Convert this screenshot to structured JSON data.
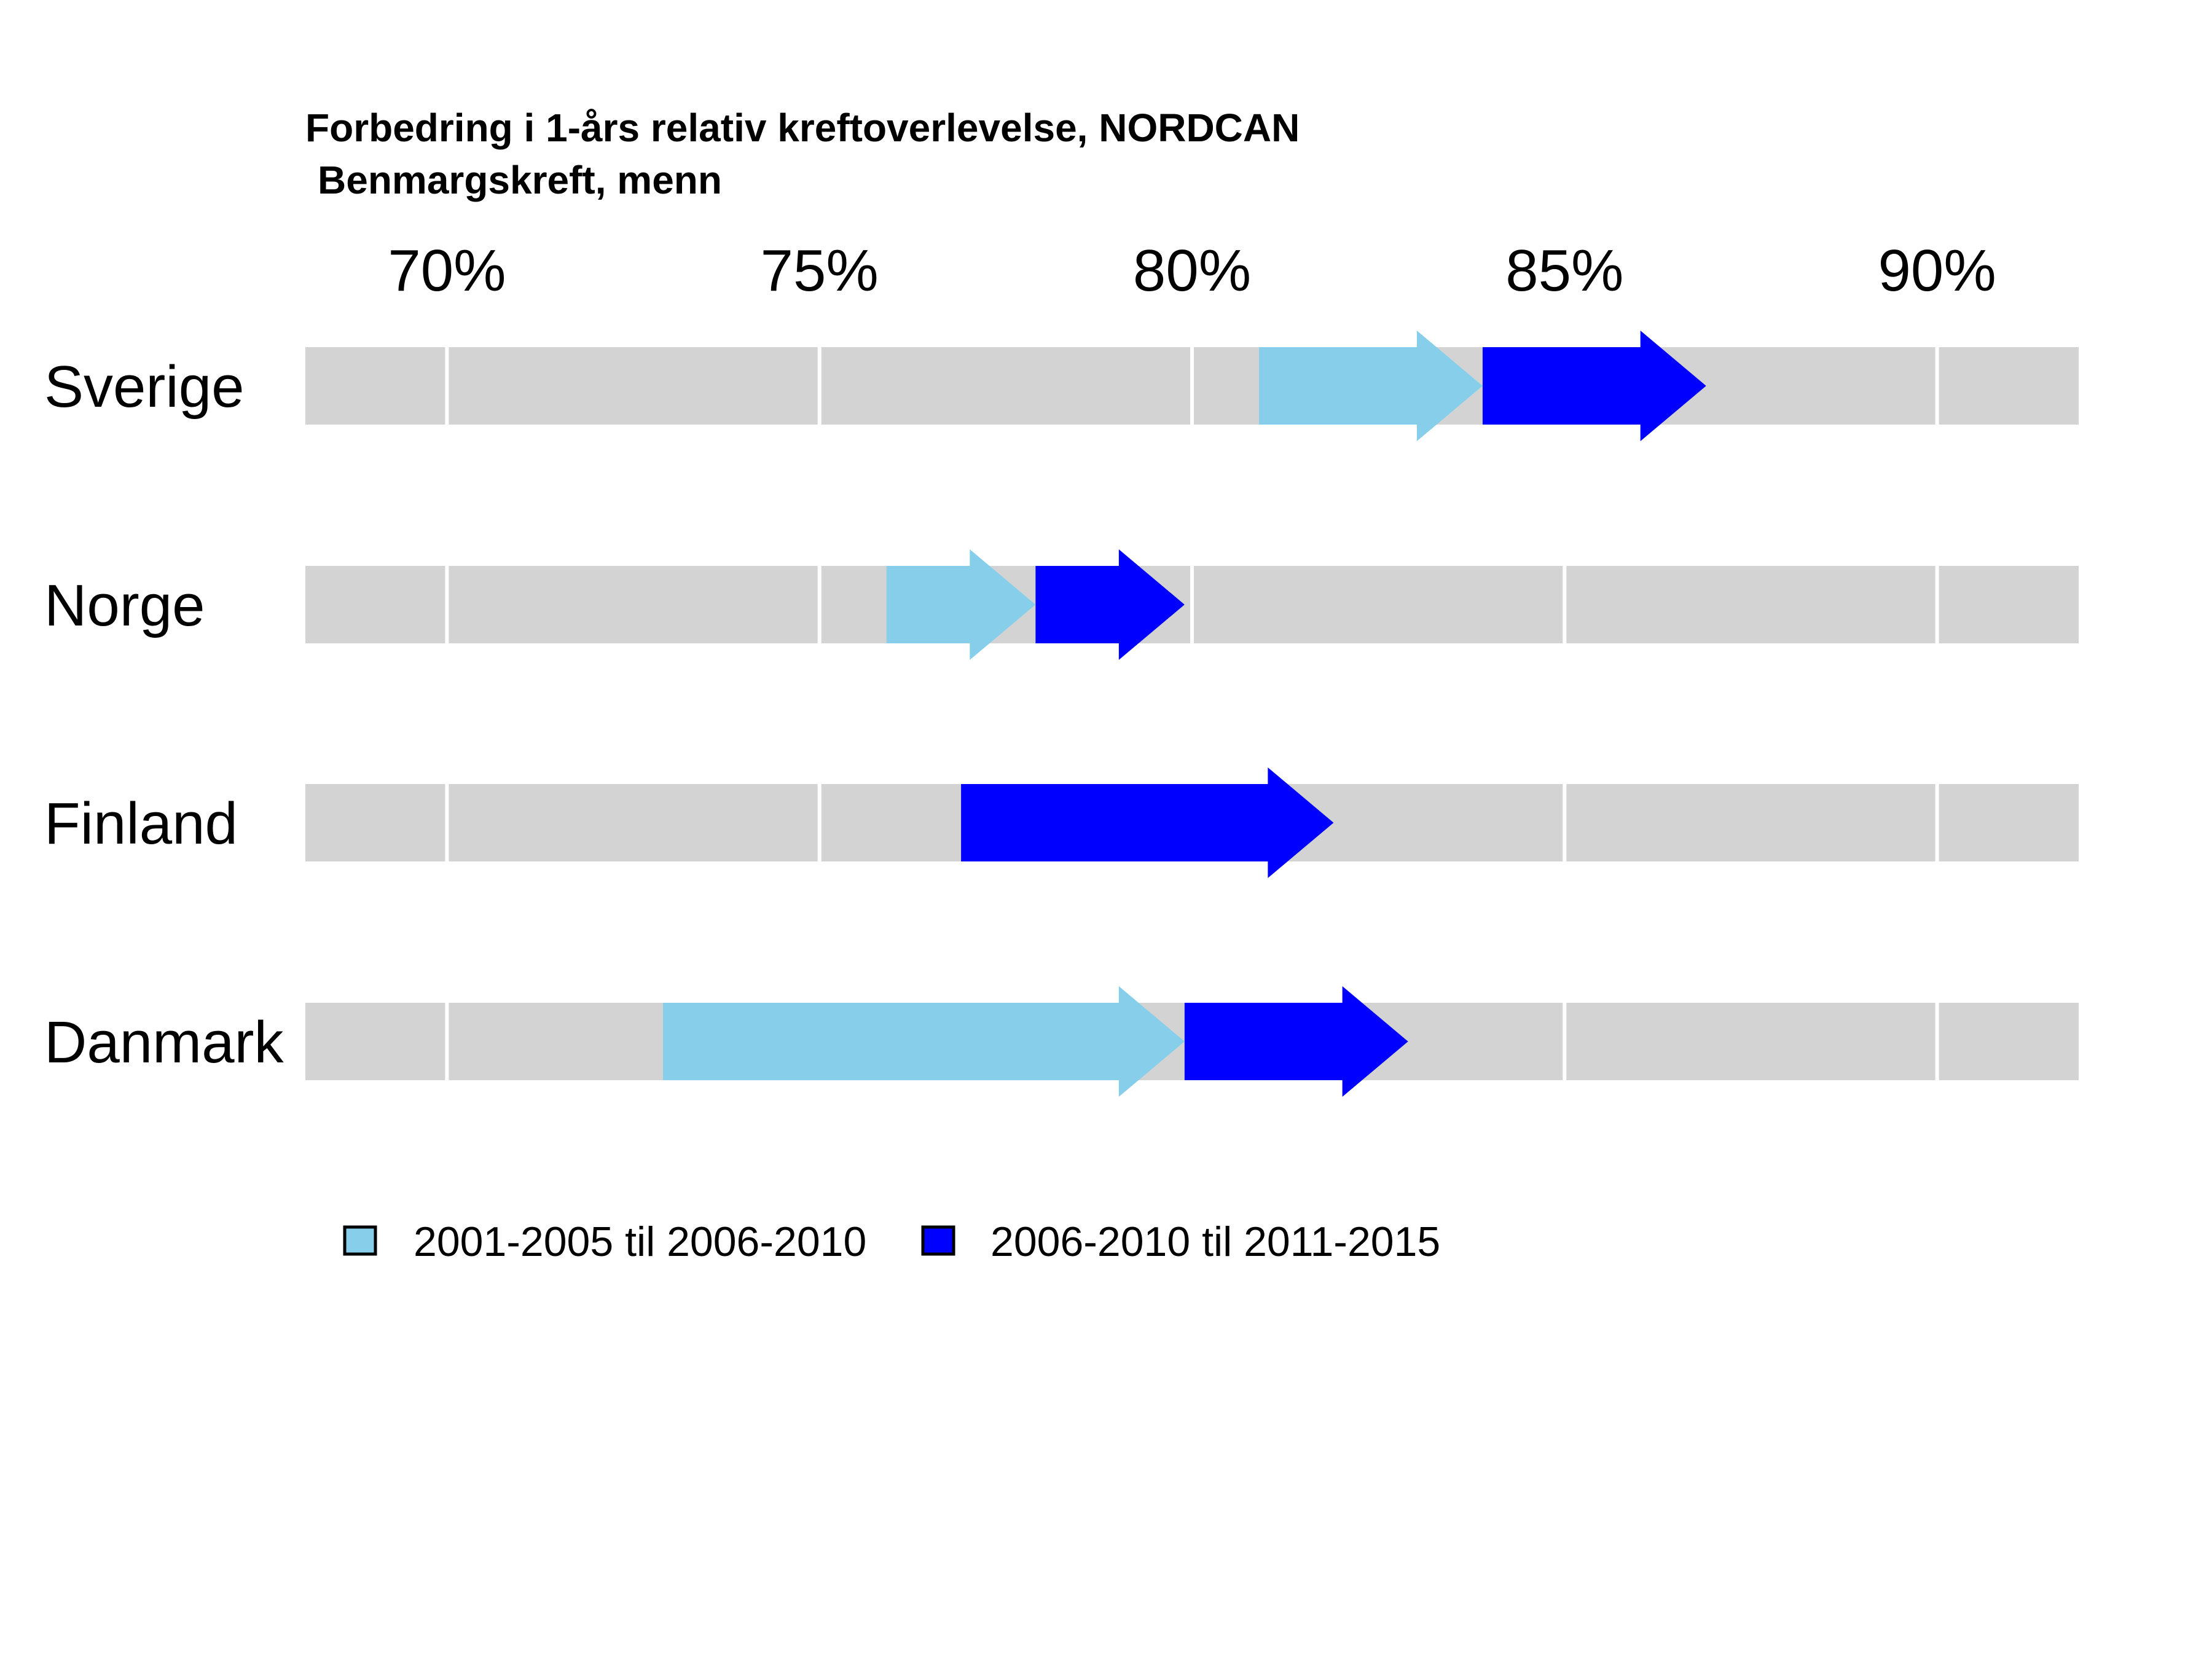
{
  "chart_data": {
    "type": "arrow-range",
    "title": "Forbedring i 1-års relativ kreftoverlevelse, NORDCAN",
    "subtitle": "Benmargskreft, menn",
    "xlim": [
      68.1,
      91.9
    ],
    "x_ticks": [
      70,
      75,
      80,
      85,
      90
    ],
    "x_tick_labels": [
      "70%",
      "75%",
      "80%",
      "85%",
      "90%"
    ],
    "x_axis_position": "top",
    "grid": true,
    "legend_position": "bottom-left",
    "series": [
      {
        "name": "2001-2005 til 2006-2010",
        "color": "#87CEEB"
      },
      {
        "name": "2006-2010 til 2011-2015",
        "color": "#0000FF"
      }
    ],
    "rows": [
      {
        "label": "Sverige",
        "values": [
          80.9,
          83.9,
          86.9
        ]
      },
      {
        "label": "Norge",
        "values": [
          75.9,
          77.9,
          79.9
        ]
      },
      {
        "label": "Finland",
        "values": [
          76.9,
          76.9,
          81.9
        ]
      },
      {
        "label": "Danmark",
        "values": [
          72.9,
          79.9,
          82.9
        ]
      }
    ],
    "colors": {
      "band": "#D3D3D3",
      "grid": "#FFFFFF"
    }
  }
}
